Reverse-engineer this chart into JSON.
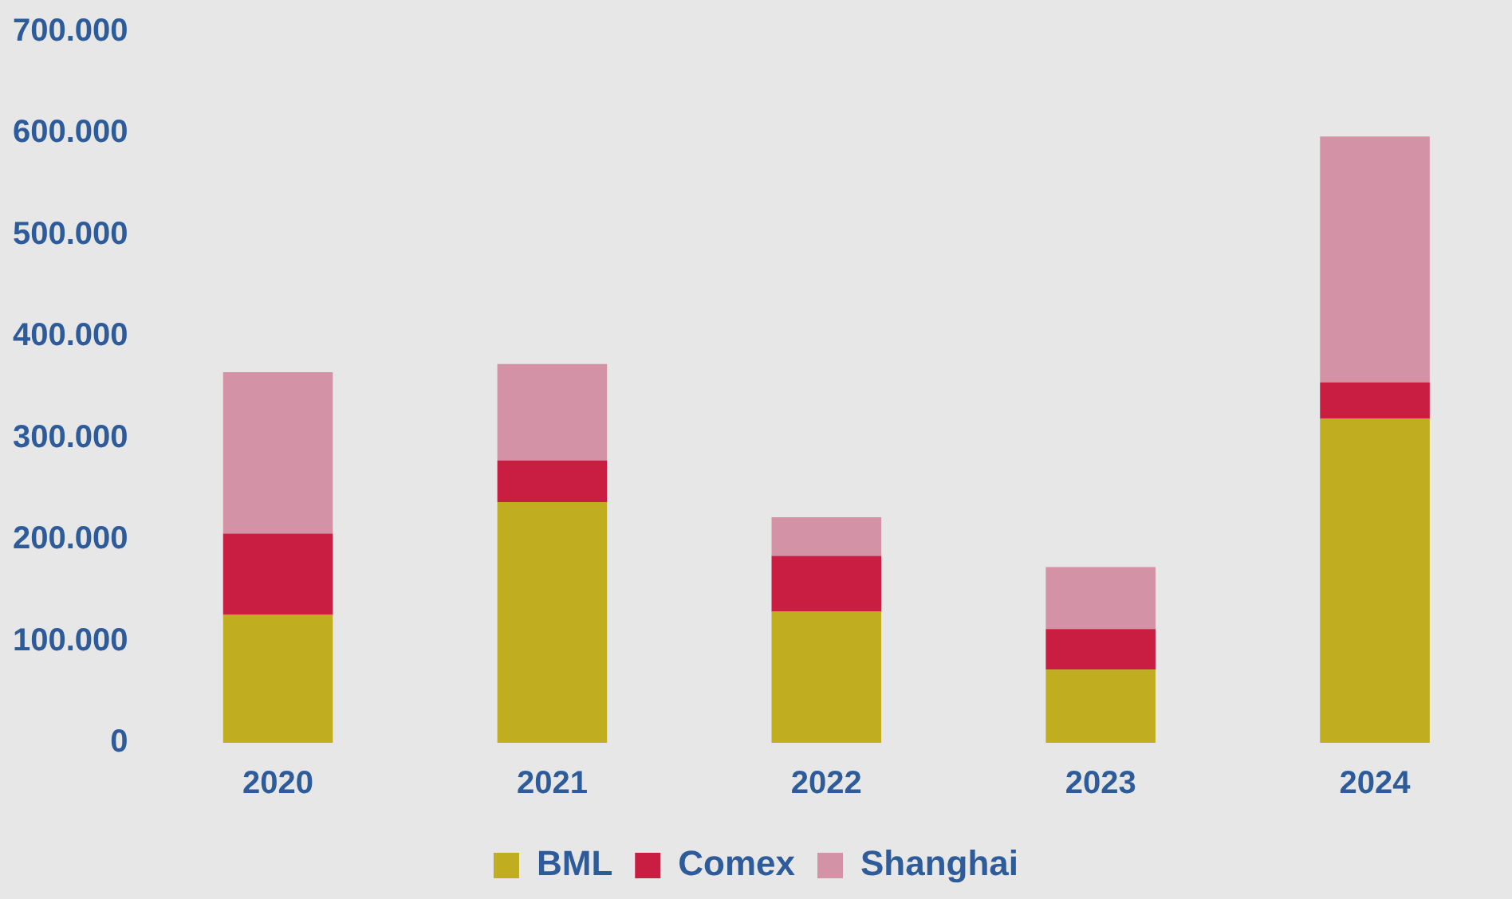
{
  "chart_data": {
    "type": "bar",
    "stacked": true,
    "categories": [
      "2020",
      "2021",
      "2022",
      "2023",
      "2024"
    ],
    "series": [
      {
        "name": "BML",
        "color": "#c0ae20",
        "values": [
          126000,
          237000,
          129000,
          72000,
          319000
        ]
      },
      {
        "name": "Comex",
        "color": "#c91d42",
        "values": [
          80000,
          41000,
          55000,
          40000,
          36000
        ]
      },
      {
        "name": "Shanghai",
        "color": "#d492a6",
        "values": [
          159000,
          95000,
          38000,
          61000,
          242000
        ]
      }
    ],
    "ylim": [
      0,
      700000
    ],
    "yticks": [
      {
        "value": 0,
        "label": "0"
      },
      {
        "value": 100000,
        "label": "100.000"
      },
      {
        "value": 200000,
        "label": "200.000"
      },
      {
        "value": 300000,
        "label": "300.000"
      },
      {
        "value": 400000,
        "label": "400.000"
      },
      {
        "value": 500000,
        "label": "500.000"
      },
      {
        "value": 600000,
        "label": "600.000"
      },
      {
        "value": 700000,
        "label": "700.000"
      }
    ],
    "grid": false,
    "legend": "bottom"
  }
}
